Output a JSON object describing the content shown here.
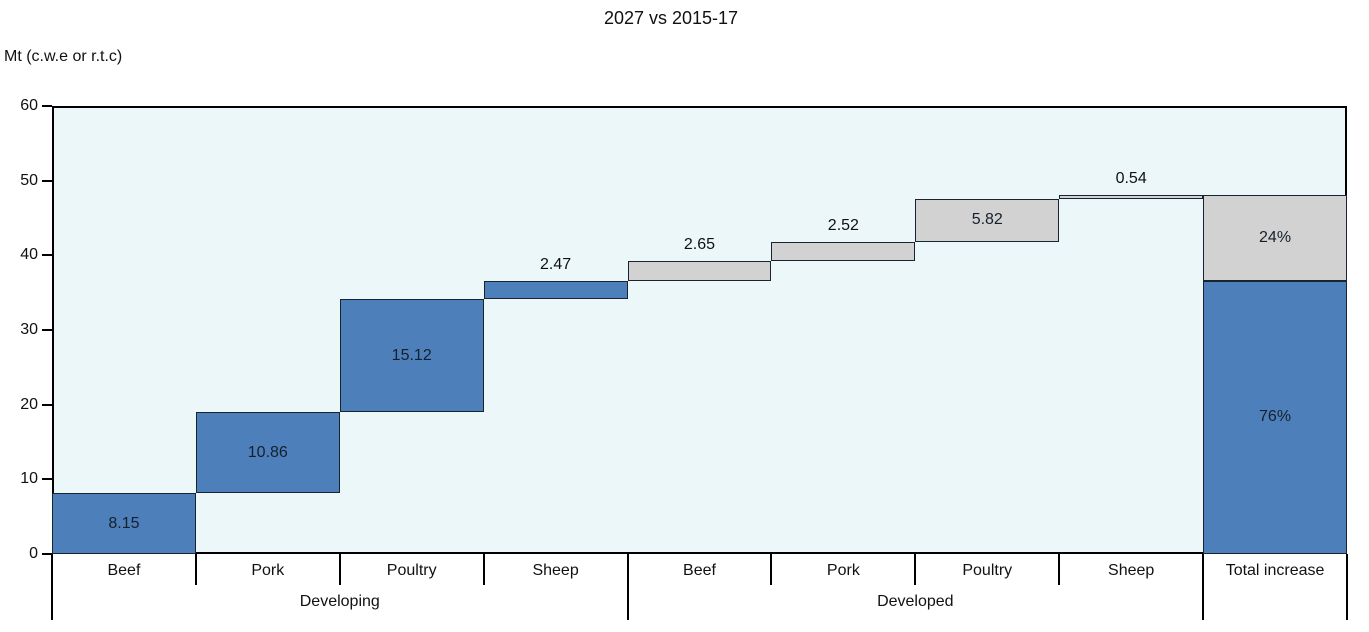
{
  "chart_data": {
    "type": "waterfall-bar",
    "title": "2027 vs 2015-17",
    "ylabel": "Mt (c.w.e or r.t.c)",
    "ylim": [
      0,
      60
    ],
    "yticks": [
      0,
      10,
      20,
      30,
      40,
      50,
      60
    ],
    "grid": false,
    "legend": "none",
    "categories": [
      "Beef",
      "Pork",
      "Poultry",
      "Sheep",
      "Beef",
      "Pork",
      "Poultry",
      "Sheep",
      "Total increase"
    ],
    "groups": [
      {
        "label": "Developing",
        "start_col": 0,
        "end_col": 4
      },
      {
        "label": "Developed",
        "start_col": 4,
        "end_col": 8
      }
    ],
    "long_boundaries": [
      0,
      4,
      8,
      9
    ],
    "bars": [
      {
        "col": 0,
        "group": "Developing",
        "category": "Beef",
        "from": 0,
        "to": 8.15,
        "value": 8.15,
        "label": "8.15",
        "color": "blue",
        "label_placement": "inside"
      },
      {
        "col": 1,
        "group": "Developing",
        "category": "Pork",
        "from": 8.15,
        "to": 19.01,
        "value": 10.86,
        "label": "10.86",
        "color": "blue",
        "label_placement": "inside"
      },
      {
        "col": 2,
        "group": "Developing",
        "category": "Poultry",
        "from": 19.01,
        "to": 34.13,
        "value": 15.12,
        "label": "15.12",
        "color": "blue",
        "label_placement": "inside"
      },
      {
        "col": 3,
        "group": "Developing",
        "category": "Sheep",
        "from": 34.13,
        "to": 36.6,
        "value": 2.47,
        "label": "2.47",
        "color": "blue",
        "label_placement": "above"
      },
      {
        "col": 4,
        "group": "Developed",
        "category": "Beef",
        "from": 36.6,
        "to": 39.25,
        "value": 2.65,
        "label": "2.65",
        "color": "gray",
        "label_placement": "above"
      },
      {
        "col": 5,
        "group": "Developed",
        "category": "Pork",
        "from": 39.25,
        "to": 41.77,
        "value": 2.52,
        "label": "2.52",
        "color": "gray",
        "label_placement": "above"
      },
      {
        "col": 6,
        "group": "Developed",
        "category": "Poultry",
        "from": 41.77,
        "to": 47.59,
        "value": 5.82,
        "label": "5.82",
        "color": "gray",
        "label_placement": "inside"
      },
      {
        "col": 7,
        "group": "Developed",
        "category": "Sheep",
        "from": 47.59,
        "to": 48.13,
        "value": 0.54,
        "label": "0.54",
        "color": "gray",
        "label_placement": "above"
      },
      {
        "col": 8,
        "group": "Total",
        "category": "Total increase",
        "from": 0,
        "to": 36.6,
        "value": 36.6,
        "label": "76%",
        "color": "blue",
        "label_placement": "inside"
      },
      {
        "col": 8,
        "group": "Total",
        "category": "Total increase",
        "from": 36.6,
        "to": 48.13,
        "value": 11.53,
        "label": "24%",
        "color": "gray",
        "label_placement": "inside"
      }
    ],
    "colors": {
      "blue": "#4d7fba",
      "gray": "#d2d2d2",
      "bar_border": "#1b2330",
      "plot_background": "#ecf7fa",
      "axis": "#000000",
      "inside_label": "#16202c",
      "outside_label": "#101010"
    }
  }
}
